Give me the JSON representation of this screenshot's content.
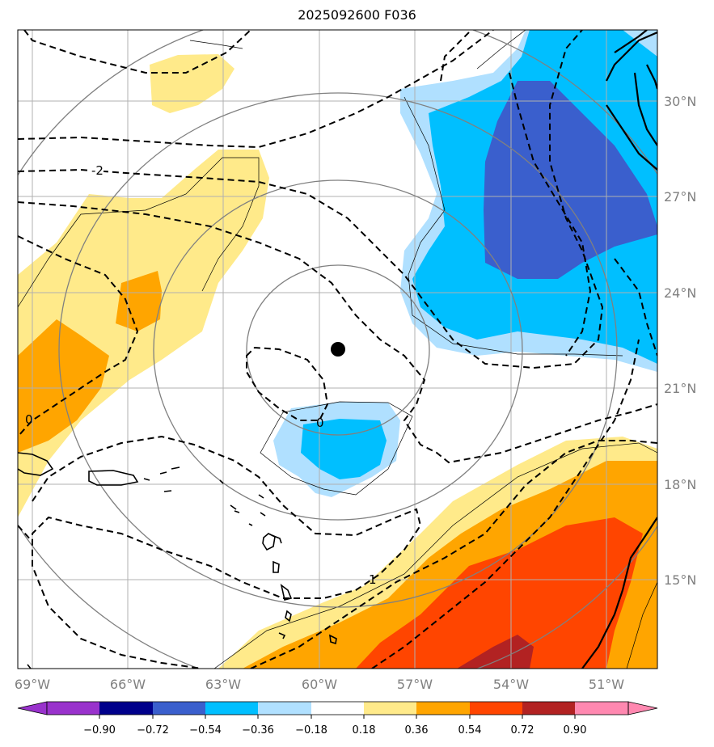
{
  "title": "2025092600 F036",
  "map": {
    "lon_labels": [
      "69°W",
      "66°W",
      "63°W",
      "60°W",
      "57°W",
      "54°W",
      "51°W"
    ],
    "lat_labels": [
      "30°N",
      "27°N",
      "24°N",
      "21°N",
      "18°N",
      "15°N"
    ],
    "contour_labels": [
      "-2",
      "0",
      "0",
      "1"
    ],
    "center_marker": {
      "lon": -59.3,
      "lat": 22.2
    }
  },
  "colorbar": {
    "levels": [
      "−0.90",
      "−0.72",
      "−0.54",
      "−0.36",
      "−0.18",
      "0.18",
      "0.36",
      "0.54",
      "0.72",
      "0.90"
    ],
    "colors": [
      "#9932cc",
      "#00008b",
      "#3a5fcd",
      "#00bfff",
      "#b0e0ff",
      "#ffffff",
      "#ffea8a",
      "#ffa500",
      "#ff4500",
      "#b22222",
      "#ff88b0"
    ]
  }
}
